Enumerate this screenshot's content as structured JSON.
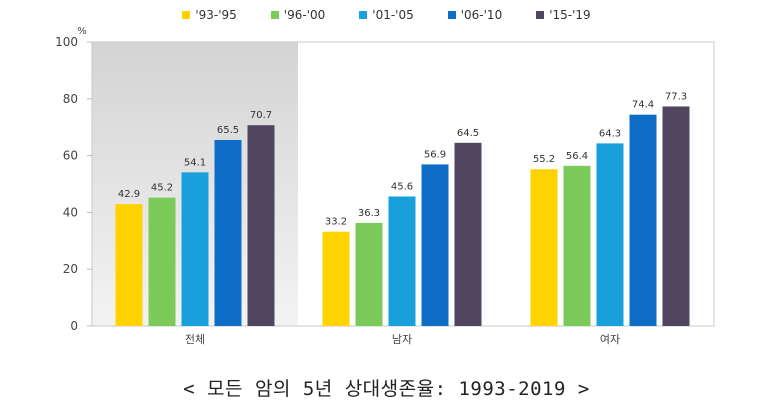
{
  "chart_data": {
    "type": "bar",
    "title": "",
    "caption": "< 모든 암의 5년 상대생존율: 1993-2019 >",
    "ylabel": "%",
    "xlabel": "",
    "ylim": [
      0,
      100
    ],
    "yticks": [
      "0",
      "20",
      "40",
      "60",
      "80",
      "100"
    ],
    "categories": [
      "전체",
      "남자",
      "여자"
    ],
    "highlight_category": "전체",
    "legend_position": "top",
    "grid": false,
    "series": [
      {
        "name": "'93-'95",
        "color": "#FFD200",
        "values": [
          42.9,
          33.2,
          55.2
        ],
        "labels": [
          "42.9",
          "33.2",
          "55.2"
        ]
      },
      {
        "name": "'96-'00",
        "color": "#7CCB5A",
        "values": [
          45.2,
          36.3,
          56.4
        ],
        "labels": [
          "45.2",
          "36.3",
          "56.4"
        ]
      },
      {
        "name": "'01-'05",
        "color": "#17A0DB",
        "values": [
          54.1,
          45.6,
          64.3
        ],
        "labels": [
          "54.1",
          "45.6",
          "64.3"
        ]
      },
      {
        "name": "'06-'10",
        "color": "#0E6DC6",
        "values": [
          65.5,
          56.9,
          74.4
        ],
        "labels": [
          "65.5",
          "56.9",
          "74.4"
        ]
      },
      {
        "name": "'15-'19",
        "color": "#504660",
        "values": [
          70.7,
          64.5,
          77.3
        ],
        "labels": [
          "70.7",
          "64.5",
          "77.3"
        ]
      }
    ]
  }
}
